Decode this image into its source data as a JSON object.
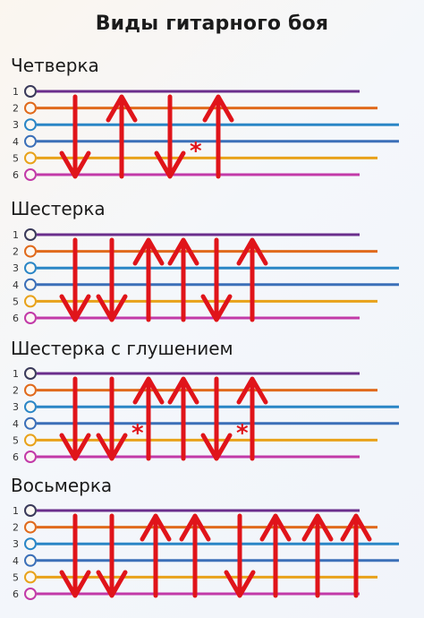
{
  "title": "Виды гитарного боя",
  "string_numbers": [
    "1",
    "2",
    "3",
    "4",
    "5",
    "6"
  ],
  "string_colors": [
    "#6a2e8c",
    "#e06a1c",
    "#2a86c6",
    "#3b6fb8",
    "#e8a21a",
    "#c23aa8"
  ],
  "arrow_color": "#e0141a",
  "mute_symbol": "*",
  "sections": [
    {
      "name": "Четверка",
      "strokes": [
        {
          "dir": "down",
          "mute": false
        },
        {
          "dir": "up",
          "mute": false
        },
        {
          "dir": "down",
          "mute": true
        },
        {
          "dir": "up",
          "mute": false
        }
      ]
    },
    {
      "name": "Шестерка",
      "strokes": [
        {
          "dir": "down",
          "mute": false
        },
        {
          "dir": "down",
          "mute": false
        },
        {
          "dir": "up",
          "mute": false
        },
        {
          "dir": "up",
          "mute": false
        },
        {
          "dir": "down",
          "mute": false
        },
        {
          "dir": "up",
          "mute": false
        }
      ]
    },
    {
      "name": "Шестерка с глушением",
      "strokes": [
        {
          "dir": "down",
          "mute": false
        },
        {
          "dir": "down",
          "mute": true
        },
        {
          "dir": "up",
          "mute": false
        },
        {
          "dir": "up",
          "mute": false
        },
        {
          "dir": "down",
          "mute": true
        },
        {
          "dir": "up",
          "mute": false
        }
      ]
    },
    {
      "name": "Восьмерка",
      "strokes": [
        {
          "dir": "down",
          "mute": false
        },
        {
          "dir": "down",
          "mute": false
        },
        {
          "dir": "up",
          "mute": false
        },
        {
          "dir": "up",
          "mute": false
        },
        {
          "dir": "down",
          "mute": false
        },
        {
          "dir": "up",
          "mute": false
        },
        {
          "dir": "up",
          "mute": false
        },
        {
          "dir": "up",
          "mute": false
        }
      ]
    }
  ]
}
